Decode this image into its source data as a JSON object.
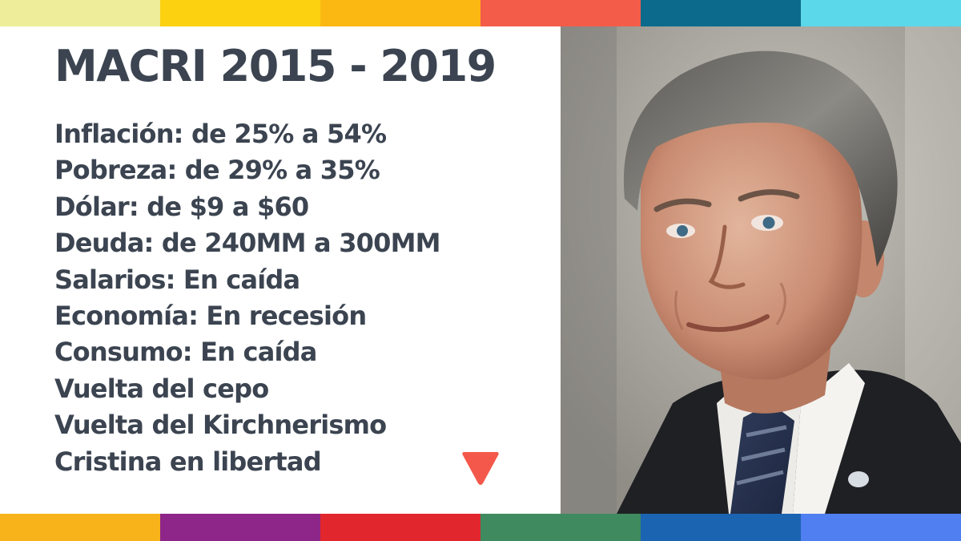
{
  "title": "MACRI 2015 - 2019",
  "stats": [
    "Inflación: de 25% a 54%",
    "Pobreza: de 29% a 35%",
    "Dólar: de $9 a $60",
    "Deuda: de 240MM a 300MM",
    "Salarios: En caída",
    "Economía: En recesión",
    "Consumo: En caída",
    "Vuelta del cepo",
    "Vuelta del Kirchnerismo",
    "Cristina en libertad"
  ],
  "colors": {
    "text": "#3b4450",
    "logo": "#f4584b",
    "top_bar": [
      "#eeee9a",
      "#fbd110",
      "#fbb813",
      "#f45c4a",
      "#0c6b8c",
      "#5bd8ea"
    ],
    "bottom_bar": [
      "#f8b31a",
      "#8e2589",
      "#e1262e",
      "#3f8a5f",
      "#1b64b2",
      "#4f7ff0"
    ]
  },
  "icons": {
    "logo": "red-downward-triangle-logo",
    "photo": "portrait-photo"
  }
}
